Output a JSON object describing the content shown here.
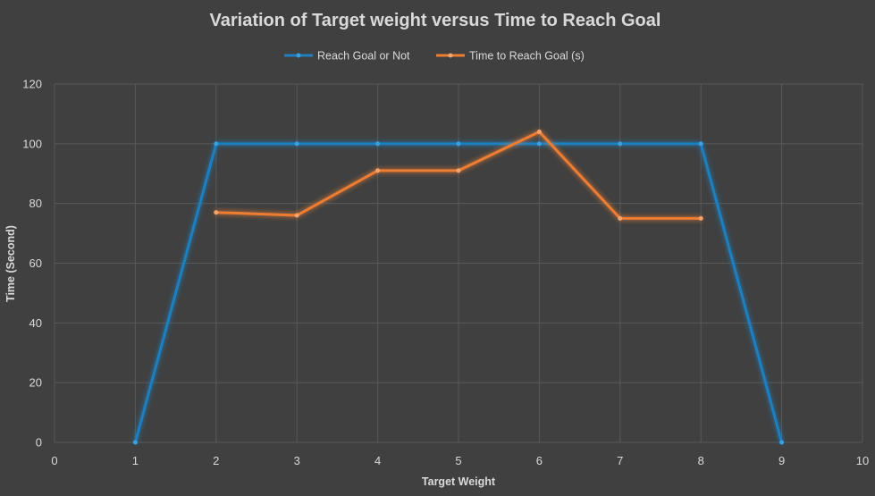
{
  "chart_data": {
    "type": "scatter",
    "title": "Variation of Target weight versus Time to Reach Goal",
    "xlabel": "Target Weight",
    "ylabel": "Time (Second)",
    "xlim": [
      0,
      10
    ],
    "ylim": [
      0,
      120
    ],
    "x_ticks": [
      "0",
      "1",
      "2",
      "3",
      "4",
      "5",
      "6",
      "7",
      "8",
      "9",
      "10"
    ],
    "y_ticks": [
      "0",
      "20",
      "40",
      "60",
      "80",
      "100",
      "120"
    ],
    "grid": true,
    "legend_position": "top",
    "series": [
      {
        "name": "Reach Goal or Not",
        "color": "#1f7fbf",
        "marker_color": "#3aa0e0",
        "x": [
          1,
          2,
          3,
          4,
          5,
          6,
          7,
          8,
          9
        ],
        "y": [
          0,
          100,
          100,
          100,
          100,
          100,
          100,
          100,
          0
        ]
      },
      {
        "name": "Time to Reach Goal (s)",
        "color": "#ed7d31",
        "marker_color": "#f4a46e",
        "x": [
          2,
          3,
          4,
          5,
          6,
          7,
          8
        ],
        "y": [
          77,
          76,
          91,
          91,
          104,
          75,
          75
        ]
      }
    ],
    "background_color": "#404040",
    "gridline_color": "#595959",
    "text_color": "#d9d9d9"
  }
}
